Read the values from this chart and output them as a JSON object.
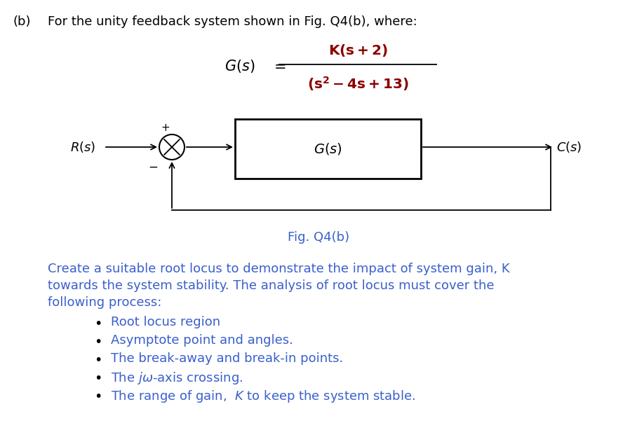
{
  "bg_color": "#ffffff",
  "part_label": "(b)",
  "header_text": "For the unity feedback system shown in Fig. Q4(b), where:",
  "fig_caption": "Fig. Q4(b)",
  "fig_caption_color": "#3a5fcd",
  "body_text_color": "#3a5fcd",
  "formula_black": "#000000",
  "formula_red": "#c0392b",
  "block_color": "#000000",
  "body_line1": "Create a suitable root locus to demonstrate the impact of system gain, K",
  "body_line2": "towards the system stability. The analysis of root locus must cover the",
  "body_line3": "following process:",
  "bullet1": "Root locus region",
  "bullet2": "Asymptote point and angles.",
  "bullet3": "The break-away and break-in points.",
  "bullet4_pre": "The ",
  "bullet4_jw": "jω",
  "bullet4_post": "-axis crossing.",
  "bullet5_pre": "The range of gain,  ",
  "bullet5_K": "K",
  "bullet5_post": " to keep the system stable."
}
